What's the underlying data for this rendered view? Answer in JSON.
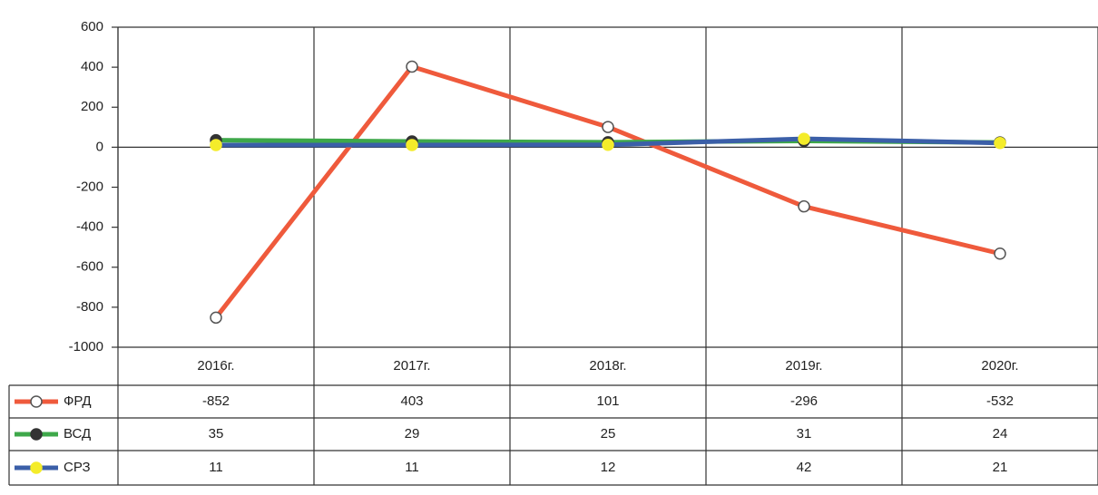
{
  "chart_data": {
    "type": "line",
    "categories": [
      "2016г.",
      "2017г.",
      "2018г.",
      "2019г.",
      "2020г."
    ],
    "series": [
      {
        "name": "ФРД",
        "color": "#ef5a3c",
        "marker_fill": "#ffffff",
        "values": [
          -852,
          403,
          101,
          -296,
          -532
        ]
      },
      {
        "name": "ВСД",
        "color": "#3ea84a",
        "marker_fill": "#333333",
        "values": [
          35,
          29,
          25,
          31,
          24
        ]
      },
      {
        "name": "СРЗ",
        "color": "#3b5fa8",
        "marker_fill": "#f4ec2a",
        "values": [
          11,
          11,
          12,
          42,
          21
        ]
      }
    ],
    "ylim": [
      -1000,
      600
    ],
    "yticks": [
      -1000,
      -800,
      -600,
      -400,
      -200,
      0,
      200,
      400,
      600
    ]
  }
}
